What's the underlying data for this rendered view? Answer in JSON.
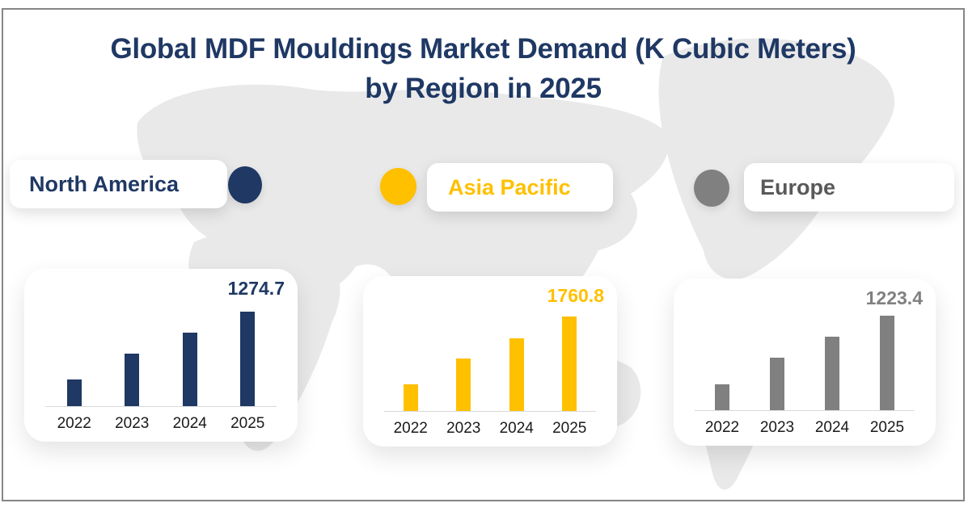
{
  "title": {
    "line1": "Global MDF Mouldings Market Demand (K Cubic Meters)",
    "line2": "by Region in 2025"
  },
  "colors": {
    "title": "#1f3864",
    "navy": "#1f3864",
    "gold": "#ffc000",
    "gray": "#808080",
    "gray_text": "#595959",
    "axis_line": "#d9d9d9",
    "year_label": "#1a1a1a",
    "map": "#e9e9e9",
    "frame_border": "#868686",
    "card_background": "#ffffff"
  },
  "legend": [
    {
      "label": "North America",
      "dot_color": "#1f3864",
      "label_color": "#1f3864",
      "dot_position": "right-of-pill"
    },
    {
      "label": "Asia Pacific",
      "dot_color": "#ffc000",
      "label_color": "#ffc000",
      "dot_position": "left-of-pill"
    },
    {
      "label": "Europe",
      "dot_color": "#808080",
      "label_color": "#595959",
      "dot_position": "left-of-pill"
    }
  ],
  "chart_data": [
    {
      "type": "bar",
      "region": "North America",
      "color": "#1f3864",
      "categories": [
        "2022",
        "2023",
        "2024",
        "2025"
      ],
      "values": [
        360,
        708,
        991,
        1274.7
      ],
      "value_label": "1274.7",
      "label_color": "#1f3864",
      "xlabel": "",
      "ylabel": "",
      "grid": false,
      "baseline_color": "#d9d9d9"
    },
    {
      "type": "bar",
      "region": "Asia Pacific",
      "color": "#ffc000",
      "categories": [
        "2022",
        "2023",
        "2024",
        "2025"
      ],
      "values": [
        497,
        978,
        1354,
        1760.8
      ],
      "value_label": "1760.8",
      "label_color": "#ffc000",
      "xlabel": "",
      "ylabel": "",
      "grid": false,
      "baseline_color": "#d9d9d9"
    },
    {
      "type": "bar",
      "region": "Europe",
      "color": "#808080",
      "categories": [
        "2022",
        "2023",
        "2024",
        "2025"
      ],
      "values": [
        338,
        675,
        949,
        1223.4
      ],
      "value_label": "1223.4",
      "label_color": "#808080",
      "xlabel": "",
      "ylabel": "",
      "grid": false,
      "baseline_color": "#d9d9d9"
    }
  ]
}
